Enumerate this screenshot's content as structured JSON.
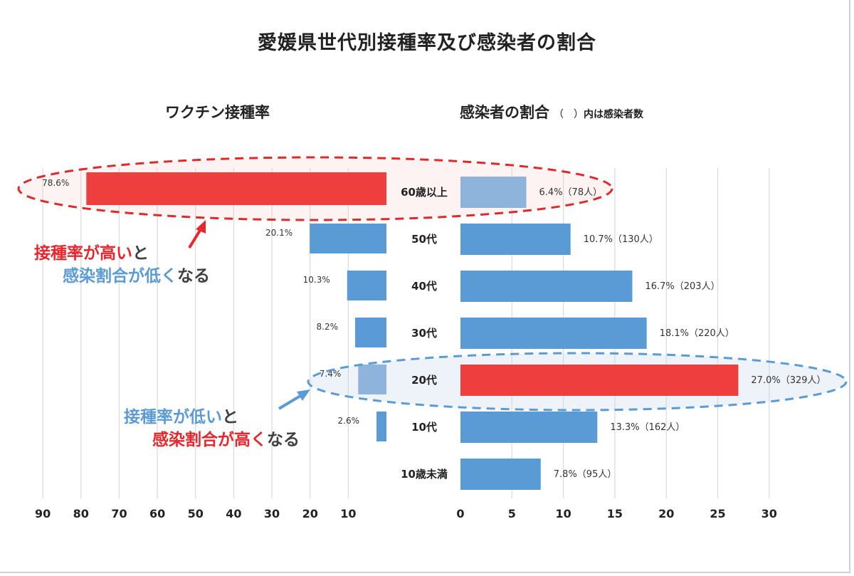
{
  "title": "愛媛県世代別接種率及び感染者の割合",
  "left_heading": "ワクチン接種率",
  "right_heading": "感染者の割合",
  "right_heading_paren": "（　）",
  "right_heading_note": "内は感染者数",
  "callouts": {
    "top_line1_a": "接種率が高い",
    "top_line1_b": "と",
    "top_line2_a": "感染割合が低く",
    "top_line2_b": "なる",
    "bottom_line1_a": "接種率が低い",
    "bottom_line1_b": "と",
    "bottom_line2_a": "感染割合が高く",
    "bottom_line2_b": "なる"
  },
  "colors": {
    "blue": "#5b9bd5",
    "light_blue": "#8fb4db",
    "red": "#ef3e3e",
    "callout_red": "#e8262b",
    "ellipse_red": "#dd2a2a",
    "ellipse_blue": "#5b9bd5"
  },
  "chart_data": [
    {
      "type": "bar",
      "orientation": "horizontal-reversed",
      "title": "ワクチン接種率",
      "categories": [
        "60歳以上",
        "50代",
        "40代",
        "30代",
        "20代",
        "10代",
        "10歳未満"
      ],
      "values": [
        78.6,
        20.1,
        10.3,
        8.2,
        7.4,
        2.6,
        null
      ],
      "data_labels": [
        "78.6%",
        "20.1%",
        "10.3%",
        "8.2%",
        "7.4%",
        "2.6%",
        ""
      ],
      "xlim": [
        0,
        90
      ],
      "xticks": [
        "90",
        "80",
        "70",
        "60",
        "50",
        "40",
        "30",
        "20",
        "10"
      ],
      "grid": true
    },
    {
      "type": "bar",
      "orientation": "horizontal",
      "title": "感染者の割合",
      "categories": [
        "60歳以上",
        "50代",
        "40代",
        "30代",
        "20代",
        "10代",
        "10歳未満"
      ],
      "values": [
        6.4,
        10.7,
        16.7,
        18.1,
        27.0,
        13.3,
        7.8
      ],
      "data_labels": [
        "6.4%（78人）",
        "10.7%（130人）",
        "16.7%（203人）",
        "18.1%（220人）",
        "27.0%（329人）",
        "13.3%（162人）",
        "7.8%（95人）"
      ],
      "xlim": [
        0,
        30
      ],
      "xticks": [
        "0",
        "5",
        "10",
        "15",
        "20",
        "25",
        "30"
      ],
      "grid": true
    }
  ]
}
